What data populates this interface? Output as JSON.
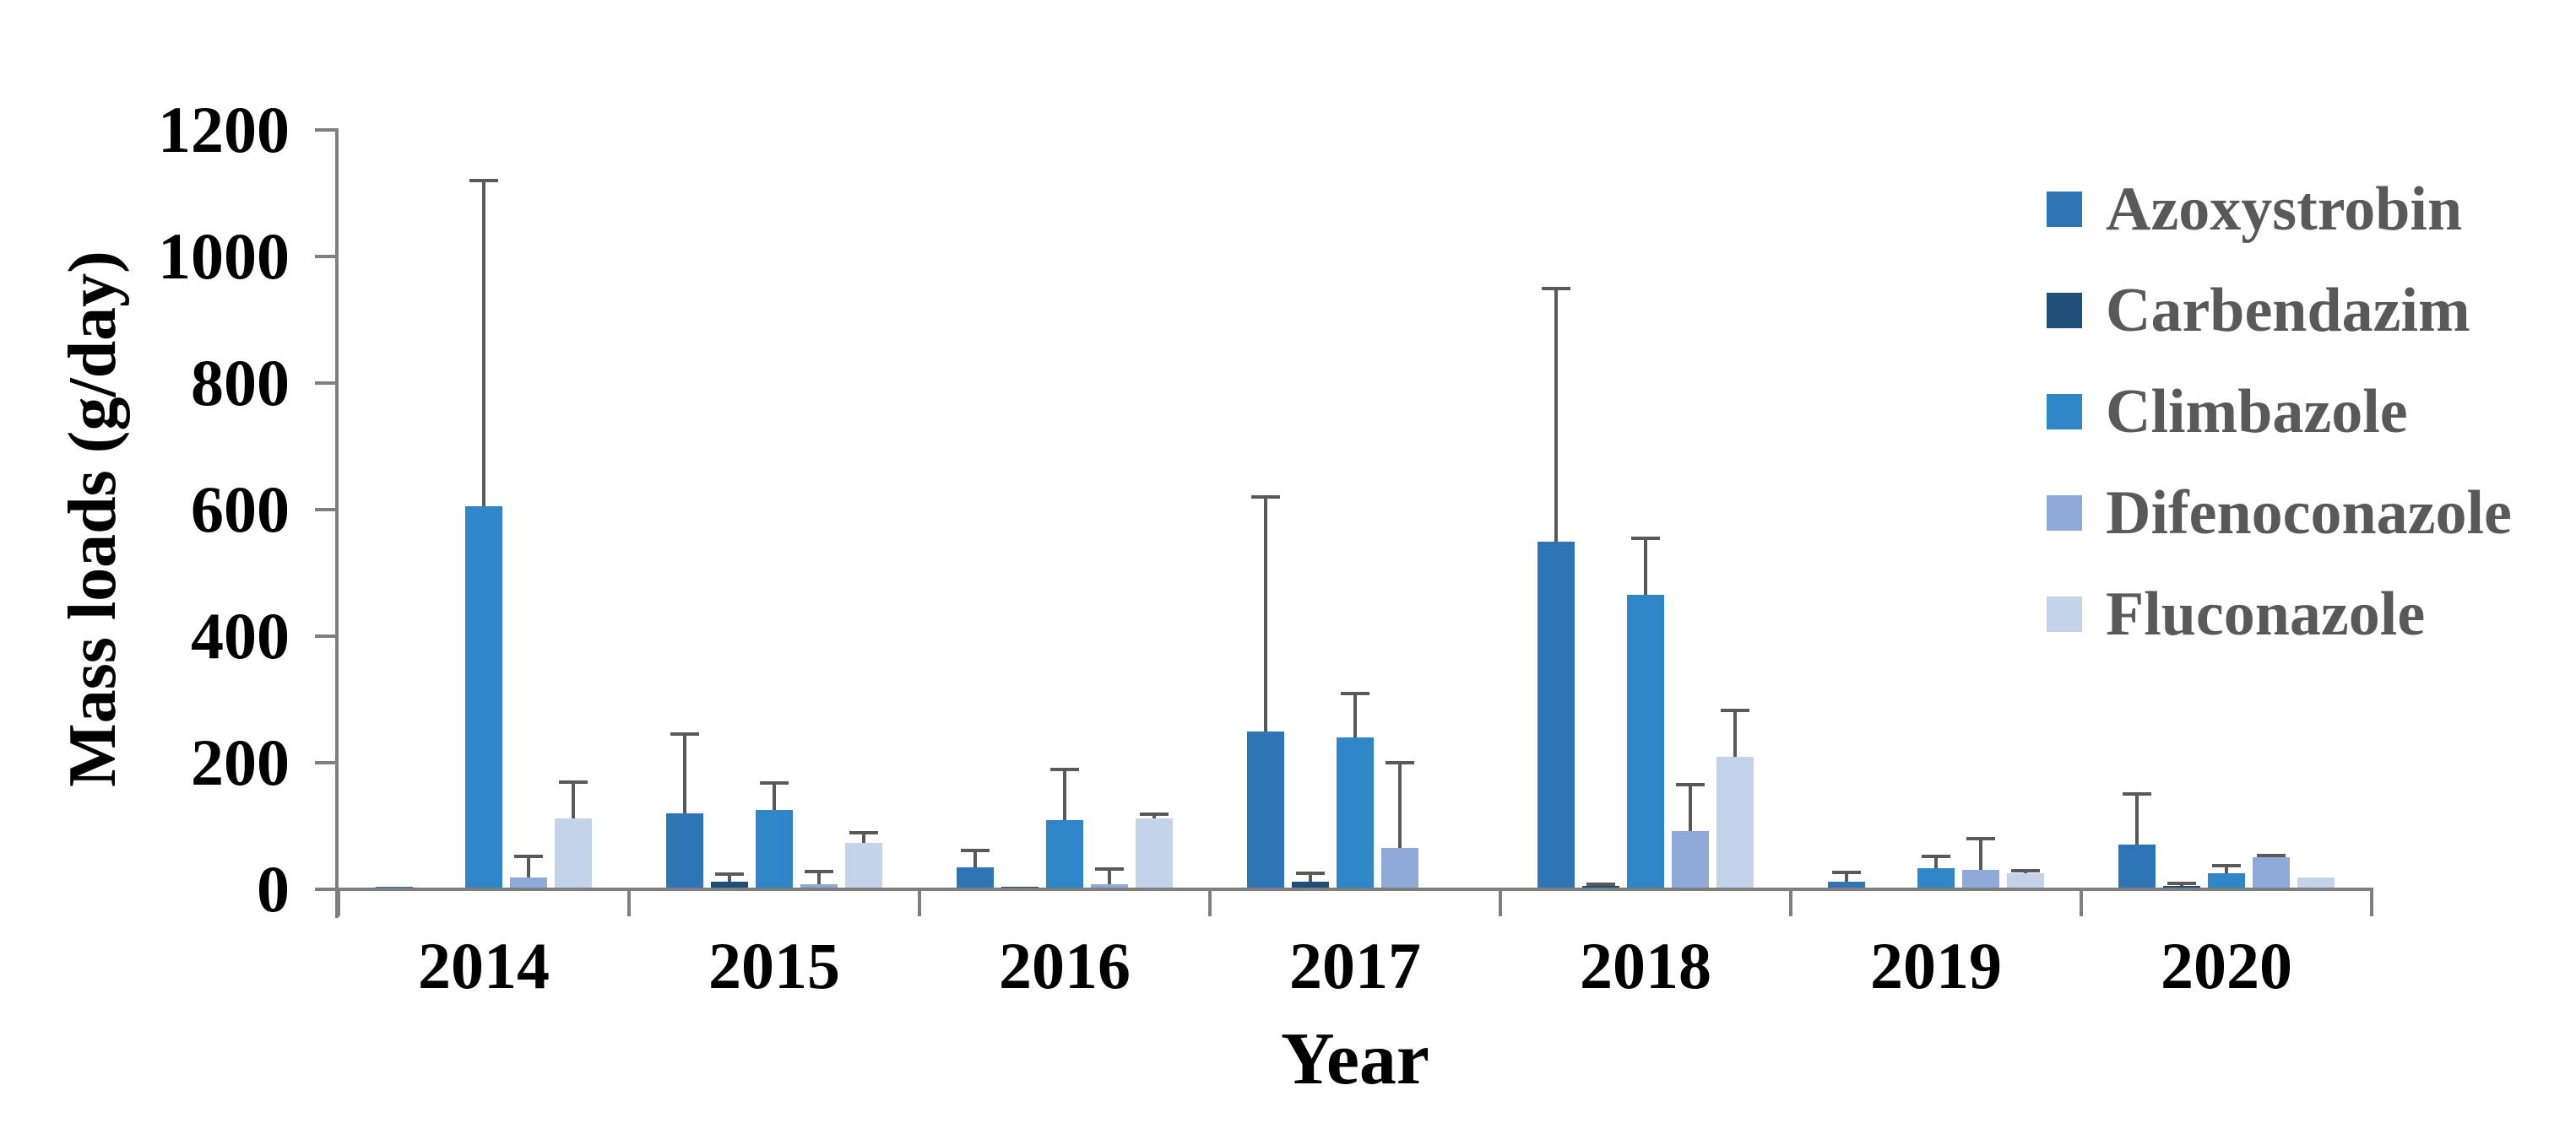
{
  "chart_data": {
    "type": "bar",
    "title": "",
    "xlabel": "Year",
    "ylabel": "Mass loads (g/day)",
    "categories": [
      "2014",
      "2015",
      "2016",
      "2017",
      "2018",
      "2019",
      "2020"
    ],
    "ylim": [
      0,
      1200
    ],
    "yticks": [
      "0",
      "200",
      "400",
      "600",
      "800",
      "1000",
      "1200"
    ],
    "ytick_step": 200,
    "grid": false,
    "legend_position": "right",
    "error_bars": "plus-direction with caps",
    "axis_color": "#7f7f7f",
    "error_bar_color": "#595959",
    "tick_label_color": "#000000",
    "legend_text_color": "#595959",
    "series": [
      {
        "name": "Azoxystrobin",
        "color": "#2E75B6",
        "values": [
          4,
          120,
          35,
          250,
          550,
          12,
          71
        ],
        "error_top": [
          null,
          245,
          62,
          620,
          950,
          27,
          151
        ]
      },
      {
        "name": "Carbendazim",
        "color": "#1F4E79",
        "values": [
          0,
          12,
          4,
          12,
          5,
          0,
          5
        ],
        "error_top": [
          null,
          24,
          null,
          25,
          8,
          null,
          9
        ]
      },
      {
        "name": "Climbazole",
        "color": "#2E86C6",
        "values": [
          605,
          126,
          109,
          240,
          465,
          34,
          26
        ],
        "error_top": [
          1120,
          168,
          190,
          310,
          555,
          52,
          37
        ]
      },
      {
        "name": "Difenoconazole",
        "color": "#8FAAD8",
        "values": [
          19,
          8,
          8,
          65,
          92,
          31,
          51
        ],
        "error_top": [
          52,
          28,
          32,
          200,
          165,
          80,
          54
        ]
      },
      {
        "name": "Fluconazole",
        "color": "#C3D3EA",
        "values": [
          112,
          74,
          112,
          0,
          210,
          25,
          19
        ],
        "error_top": [
          169,
          89,
          119,
          null,
          283,
          29,
          null
        ]
      }
    ]
  }
}
